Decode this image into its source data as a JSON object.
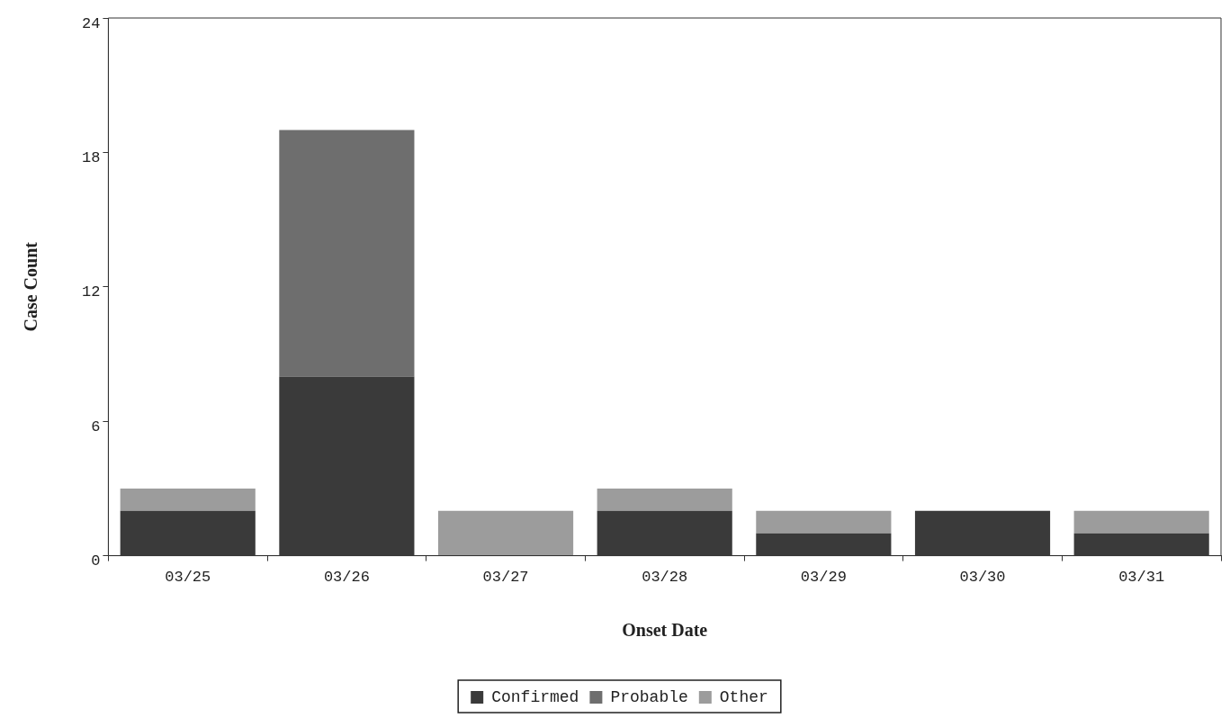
{
  "chart_data": {
    "type": "bar",
    "stacked": true,
    "xlabel": "Onset Date",
    "ylabel": "Case Count",
    "categories": [
      "03/25",
      "03/26",
      "03/27",
      "03/28",
      "03/29",
      "03/30",
      "03/31"
    ],
    "series": [
      {
        "name": "Confirmed",
        "color": "#3a3a3a",
        "values": [
          2,
          8,
          0,
          2,
          1,
          2,
          1
        ]
      },
      {
        "name": "Probable",
        "color": "#6e6e6e",
        "values": [
          0,
          11,
          0,
          0,
          0,
          0,
          0
        ]
      },
      {
        "name": "Other",
        "color": "#9c9c9c",
        "values": [
          1,
          0,
          2,
          1,
          1,
          0,
          1
        ]
      }
    ],
    "ylim": [
      0,
      24
    ],
    "yticks": [
      0,
      6,
      12,
      18,
      24
    ],
    "grid": false,
    "legend": "bottom"
  }
}
